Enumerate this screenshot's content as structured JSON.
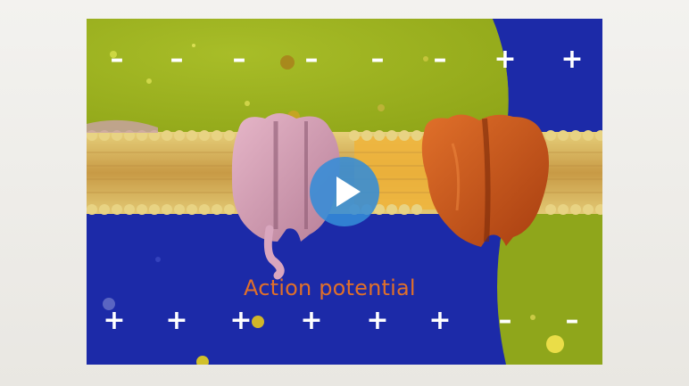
{
  "video": {
    "caption": "Action potential",
    "play_icon": "play-icon"
  },
  "top_charges": [
    "–",
    "–",
    "–",
    "–",
    "–",
    "–",
    "+",
    "+"
  ],
  "bottom_charges": [
    "+",
    "+",
    "+",
    "+",
    "+",
    "+",
    "–",
    "–"
  ],
  "colors": {
    "extracellular_green": "#9cb21f",
    "intracellular_blue": "#1c2aa8",
    "membrane_tan": "#d9b25a",
    "channel_pink": "#d7a0b8",
    "channel_orange": "#c8541c",
    "caption_orange": "#e0702a",
    "play_blue": "#348cd7"
  }
}
